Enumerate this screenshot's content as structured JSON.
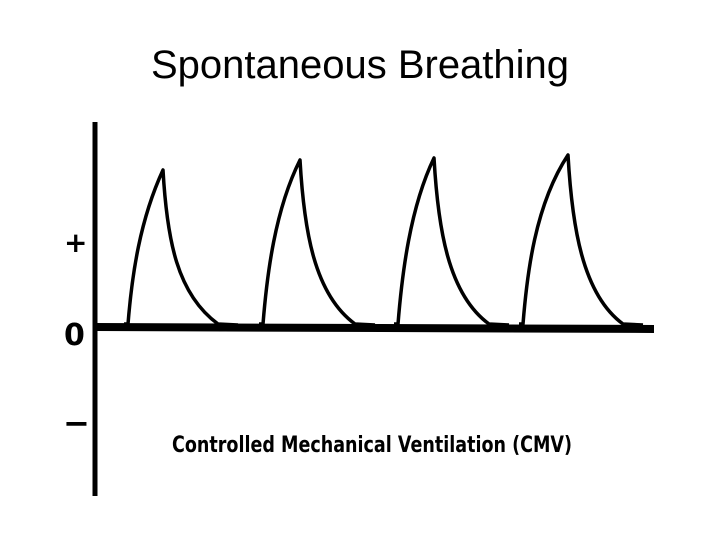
{
  "title": "Spontaneous Breathing",
  "diagram": {
    "plus_symbol": "+",
    "zero_symbol": "0",
    "minus_symbol": "−",
    "caption": "Controlled Mechanical Ventilation (CMV)",
    "waveform_cycles": 4,
    "line_color": "#000000"
  }
}
